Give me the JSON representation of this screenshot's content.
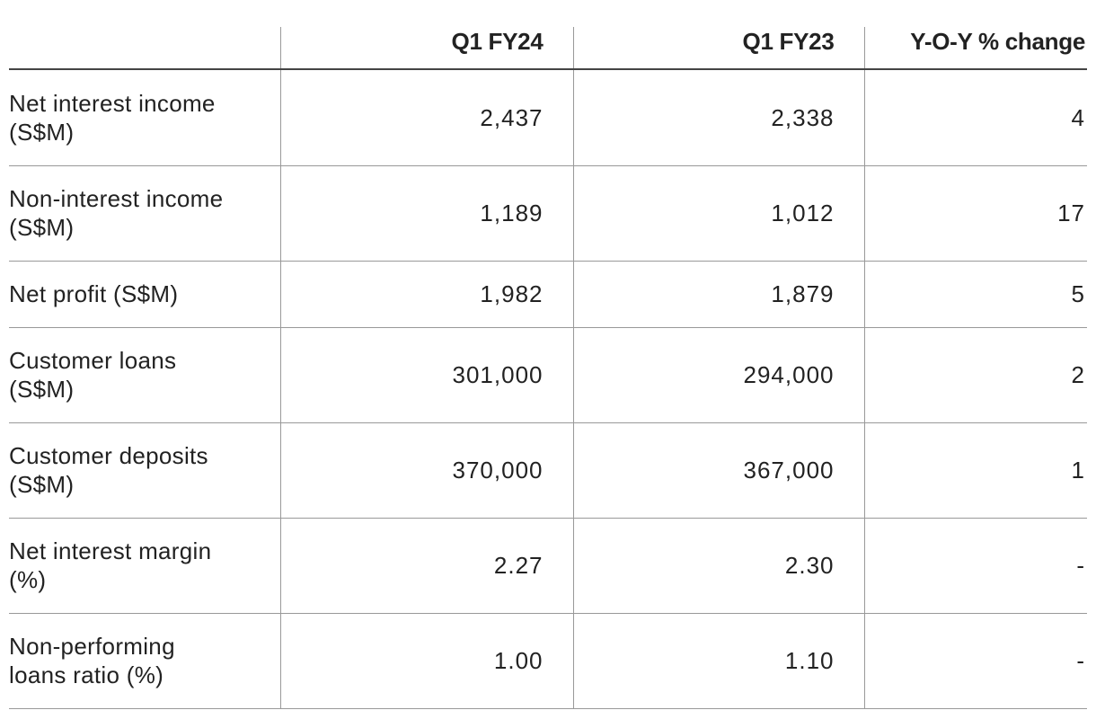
{
  "table": {
    "headers": [
      "",
      "Q1 FY24",
      "Q1 FY23",
      "Y-O-Y % change"
    ],
    "rows": [
      [
        "Net interest income (S$M)",
        "2,437",
        "2,338",
        "4"
      ],
      [
        "Non-interest income (S$M)",
        "1,189",
        "1,012",
        "17"
      ],
      [
        "Net profit (S$M)",
        "1,982",
        "1,879",
        "5"
      ],
      [
        "Customer loans (S$M)",
        "301,000",
        "294,000",
        "2"
      ],
      [
        "Customer deposits (S$M)",
        "370,000",
        "367,000",
        "1"
      ],
      [
        "Net interest margin (%)",
        "2.27",
        "2.30",
        "-"
      ],
      [
        "Non-performing loans ratio (%)",
        "1.00",
        "1.10",
        "-"
      ]
    ]
  }
}
